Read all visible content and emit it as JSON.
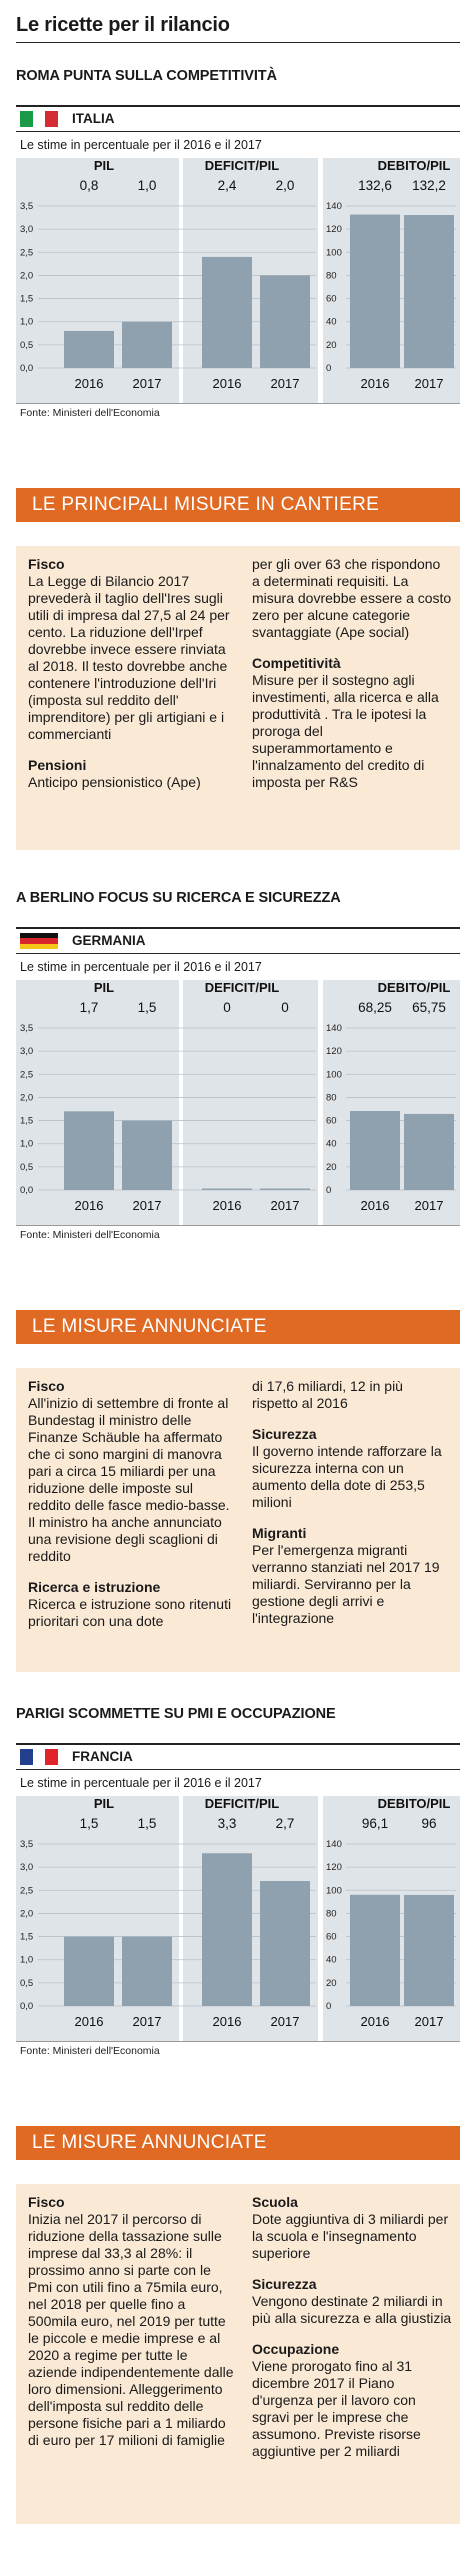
{
  "main_title": "Le ricette per il rilancio",
  "colors": {
    "bar": "#8fa1ae",
    "chart_bg": "#dfe4e8",
    "banner": "#e06a23",
    "box": "#fae9d5"
  },
  "sections": [
    {
      "heading": "ROMA PUNTA SULLA COMPETITIVITÀ",
      "country": "ITALIA",
      "flag": "italy-flag",
      "subtitle": "Le stime in percentuale per il 2016 e il 2017",
      "source": "Fonte: Ministeri dell'Economia",
      "banner": "LE PRINCIPALI MISURE IN CANTIERE",
      "columns": [
        [
          {
            "title": "Fisco",
            "text": "La Legge di Bilancio 2017 prevederà il taglio dell'Ires sugli utili di impresa dal 27,5 al 24 per cento. La riduzione dell'Irpef dovrebbe invece essere rinviata al 2018. Il testo dovrebbe anche contenere l'introduzione dell'Iri (imposta sul reddito dell' imprenditore) per gli artigiani e i commercianti"
          },
          {
            "title": "Pensioni",
            "text": "Anticipo pensionistico (Ape)"
          }
        ],
        [
          {
            "title": "",
            "text": "per gli over 63 che rispondono a determinati requisiti. La misura dovrebbe essere a costo zero per alcune categorie svantaggiate (Ape social)"
          },
          {
            "title": "Competitività",
            "text": "Misure per il sostegno agli investimenti, alla ricerca e alla produttività . Tra le ipotesi la proroga del superammortamento e l'innalzamento del credito di imposta per R&S"
          }
        ]
      ]
    },
    {
      "heading": "A BERLINO FOCUS SU RICERCA E SICUREZZA",
      "country": "GERMANIA",
      "flag": "germany-flag",
      "subtitle": "Le stime in percentuale per il 2016 e il 2017",
      "source": "Fonte: Ministeri dell'Economia",
      "banner": "LE MISURE ANNUNCIATE",
      "columns": [
        [
          {
            "title": "Fisco",
            "text": "All'inizio di settembre di fronte al Bundestag il ministro delle Finanze Schäuble ha affermato che ci sono margini di manovra pari a circa 15 miliardi per una riduzione delle imposte sul reddito delle fasce medio-basse. Il ministro ha anche annunciato una revisione degli scaglioni di reddito"
          },
          {
            "title": "Ricerca e istruzione",
            "text": "Ricerca e istruzione sono ritenuti prioritari con una dote"
          }
        ],
        [
          {
            "title": "",
            "text": "di 17,6 miliardi, 12 in più rispetto al 2016"
          },
          {
            "title": "Sicurezza",
            "text": "Il governo intende rafforzare la sicurezza interna con un aumento della dote di 253,5 milioni"
          },
          {
            "title": "Migranti",
            "text": "Per l'emergenza migranti verranno stanziati nel 2017 19 miliardi. Serviranno per la gestione degli arrivi e l'integrazione"
          }
        ]
      ]
    },
    {
      "heading": "PARIGI SCOMMETTE SU PMI E OCCUPAZIONE",
      "country": "FRANCIA",
      "flag": "france-flag",
      "subtitle": "Le stime in percentuale per il 2016 e il 2017",
      "source": "Fonte: Ministeri dell'Economia",
      "banner": "LE MISURE ANNUNCIATE",
      "columns": [
        [
          {
            "title": "Fisco",
            "text": "Inizia nel 2017 il percorso di riduzione della tassazione sulle imprese dal 33,3 al 28%: il prossimo anno si parte con le Pmi con utili fino a 75mila euro, nel 2018 per quelle fino a 500mila euro, nel 2019 per tutte le piccole e medie imprese e al 2020 a regime per tutte le aziende indipendentemente dalle loro dimensioni. Alleggerimento dell'imposta sul reddito delle persone fisiche pari a 1 miliardo di euro per 17 milioni di famiglie"
          }
        ],
        [
          {
            "title": "Scuola",
            "text": "Dote aggiuntiva di 3 miliardi per la scuola e l'insegnamento superiore"
          },
          {
            "title": "Sicurezza",
            "text": "Vengono destinate 2 miliardi in più alla sicurezza e alla giustizia"
          },
          {
            "title": "Occupazione",
            "text": "Viene prorogato fino al 31 dicembre 2017 il Piano d'urgenza per il lavoro con sgravi per le imprese che assumono. Previste risorse aggiuntive per 2 miliardi"
          }
        ]
      ]
    }
  ],
  "chart_data": [
    {
      "type": "bar",
      "country": "ITALIA",
      "left_axis_ticks": [
        "3,5",
        "3,0",
        "2,5",
        "2,0",
        "1,5",
        "1,0",
        "0,5",
        "0,0"
      ],
      "left_ylim": [
        0,
        3.5
      ],
      "right_axis_ticks": [
        "140",
        "120",
        "100",
        "80",
        "60",
        "40",
        "20",
        "0"
      ],
      "right_ylim": [
        0,
        140
      ],
      "panels": [
        {
          "title": "PIL",
          "categories": [
            "2016",
            "2017"
          ],
          "values": [
            0.8,
            1.0
          ],
          "labels": [
            "0,8",
            "1,0"
          ],
          "axis": "left"
        },
        {
          "title": "DEFICIT/PIL",
          "categories": [
            "2016",
            "2017"
          ],
          "values": [
            2.4,
            2.0
          ],
          "labels": [
            "2,4",
            "2,0"
          ],
          "axis": "left"
        },
        {
          "title": "DEBITO/PIL",
          "categories": [
            "2016",
            "2017"
          ],
          "values": [
            132.6,
            132.2
          ],
          "labels": [
            "132,6",
            "132,2"
          ],
          "axis": "right"
        }
      ]
    },
    {
      "type": "bar",
      "country": "GERMANIA",
      "left_axis_ticks": [
        "3,5",
        "3,0",
        "2,5",
        "2,0",
        "1,5",
        "1,0",
        "0,5",
        "0,0"
      ],
      "left_ylim": [
        0,
        3.5
      ],
      "right_axis_ticks": [
        "140",
        "120",
        "100",
        "80",
        "60",
        "40",
        "20",
        "0"
      ],
      "right_ylim": [
        0,
        140
      ],
      "panels": [
        {
          "title": "PIL",
          "categories": [
            "2016",
            "2017"
          ],
          "values": [
            1.7,
            1.5
          ],
          "labels": [
            "1,7",
            "1,5"
          ],
          "axis": "left"
        },
        {
          "title": "DEFICIT/PIL",
          "categories": [
            "2016",
            "2017"
          ],
          "values": [
            0,
            0
          ],
          "labels": [
            "0",
            "0"
          ],
          "axis": "left"
        },
        {
          "title": "DEBITO/PIL",
          "categories": [
            "2016",
            "2017"
          ],
          "values": [
            68.25,
            65.75
          ],
          "labels": [
            "68,25",
            "65,75"
          ],
          "axis": "right"
        }
      ]
    },
    {
      "type": "bar",
      "country": "FRANCIA",
      "left_axis_ticks": [
        "3,5",
        "3,0",
        "2,5",
        "2,0",
        "1,5",
        "1,0",
        "0,5",
        "0,0"
      ],
      "left_ylim": [
        0,
        3.5
      ],
      "right_axis_ticks": [
        "140",
        "120",
        "100",
        "80",
        "60",
        "40",
        "20",
        "0"
      ],
      "right_ylim": [
        0,
        140
      ],
      "panels": [
        {
          "title": "PIL",
          "categories": [
            "2016",
            "2017"
          ],
          "values": [
            1.5,
            1.5
          ],
          "labels": [
            "1,5",
            "1,5"
          ],
          "axis": "left"
        },
        {
          "title": "DEFICIT/PIL",
          "categories": [
            "2016",
            "2017"
          ],
          "values": [
            3.3,
            2.7
          ],
          "labels": [
            "3,3",
            "2,7"
          ],
          "axis": "left"
        },
        {
          "title": "DEBITO/PIL",
          "categories": [
            "2016",
            "2017"
          ],
          "values": [
            96.1,
            96.0
          ],
          "labels": [
            "96,1",
            "96"
          ],
          "axis": "right"
        }
      ]
    }
  ]
}
